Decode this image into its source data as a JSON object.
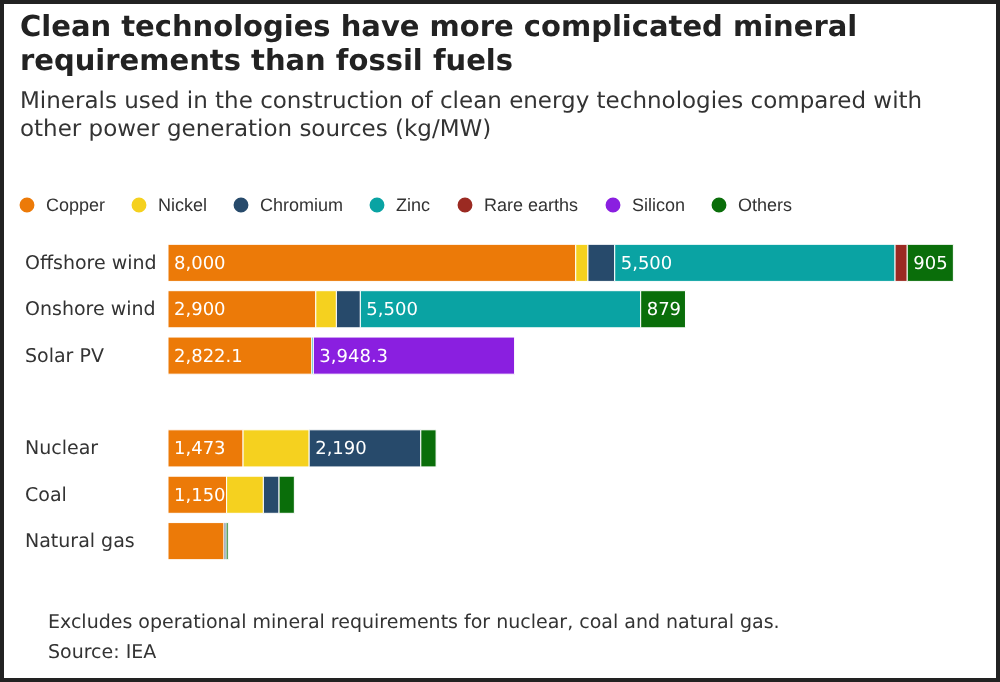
{
  "chart_data": {
    "type": "bar",
    "orientation": "horizontal",
    "stacked": true,
    "title": "Clean technologies have more complicated mineral requirements than fossil fuels",
    "subtitle": "Minerals used in the construction of clean energy technologies compared with other power generation sources (kg/MW)",
    "categories": [
      "Offshore wind",
      "Onshore wind",
      "Solar PV",
      null,
      "Nuclear",
      "Coal",
      "Natural gas"
    ],
    "xlim": [
      0,
      15500
    ],
    "tick_labels": "y",
    "grid": false,
    "legend": "top left",
    "series": [
      {
        "name": "Copper",
        "color": "#ec7a08",
        "values": [
          8000,
          2900,
          2822.1,
          null,
          1473,
          1150,
          1100
        ],
        "value_labels": [
          "8,000",
          "2,900",
          "2,822.1",
          null,
          "1,473",
          "1,150",
          null
        ]
      },
      {
        "name": "Nickel",
        "color": "#f5d11f",
        "values": [
          240,
          404,
          null,
          null,
          1297,
          721,
          null
        ],
        "value_labels": [
          null,
          null,
          null,
          null,
          null,
          null,
          null
        ]
      },
      {
        "name": "Chromium",
        "color": "#274a6b",
        "values": [
          525,
          470,
          null,
          null,
          2190,
          308,
          40
        ],
        "value_labels": [
          null,
          null,
          null,
          null,
          "2,190",
          null,
          null
        ]
      },
      {
        "name": "Zinc",
        "color": "#0aa3a3",
        "values": [
          5500,
          5500,
          30,
          null,
          null,
          null,
          null
        ],
        "value_labels": [
          "5,500",
          "5,500",
          null,
          null,
          null,
          null,
          null
        ]
      },
      {
        "name": "Rare earths",
        "color": "#9b2a22",
        "values": [
          239,
          null,
          null,
          null,
          null,
          null,
          null
        ],
        "value_labels": [
          null,
          null,
          null,
          null,
          null,
          null,
          null
        ]
      },
      {
        "name": "Silicon",
        "color": "#8a1fe0",
        "values": [
          null,
          null,
          3948.3,
          null,
          null,
          null,
          null
        ],
        "value_labels": [
          null,
          null,
          "3,948.3",
          null,
          null,
          null,
          null
        ]
      },
      {
        "name": "Others",
        "color": "#0a6e0a",
        "values": [
          905,
          879,
          null,
          null,
          300,
          300,
          40
        ],
        "value_labels": [
          "905",
          "879",
          null,
          null,
          null,
          null,
          null
        ]
      }
    ],
    "annotations": [
      "Excludes operational mineral requirements for nuclear, coal and natural gas.",
      "Source: IEA"
    ]
  }
}
